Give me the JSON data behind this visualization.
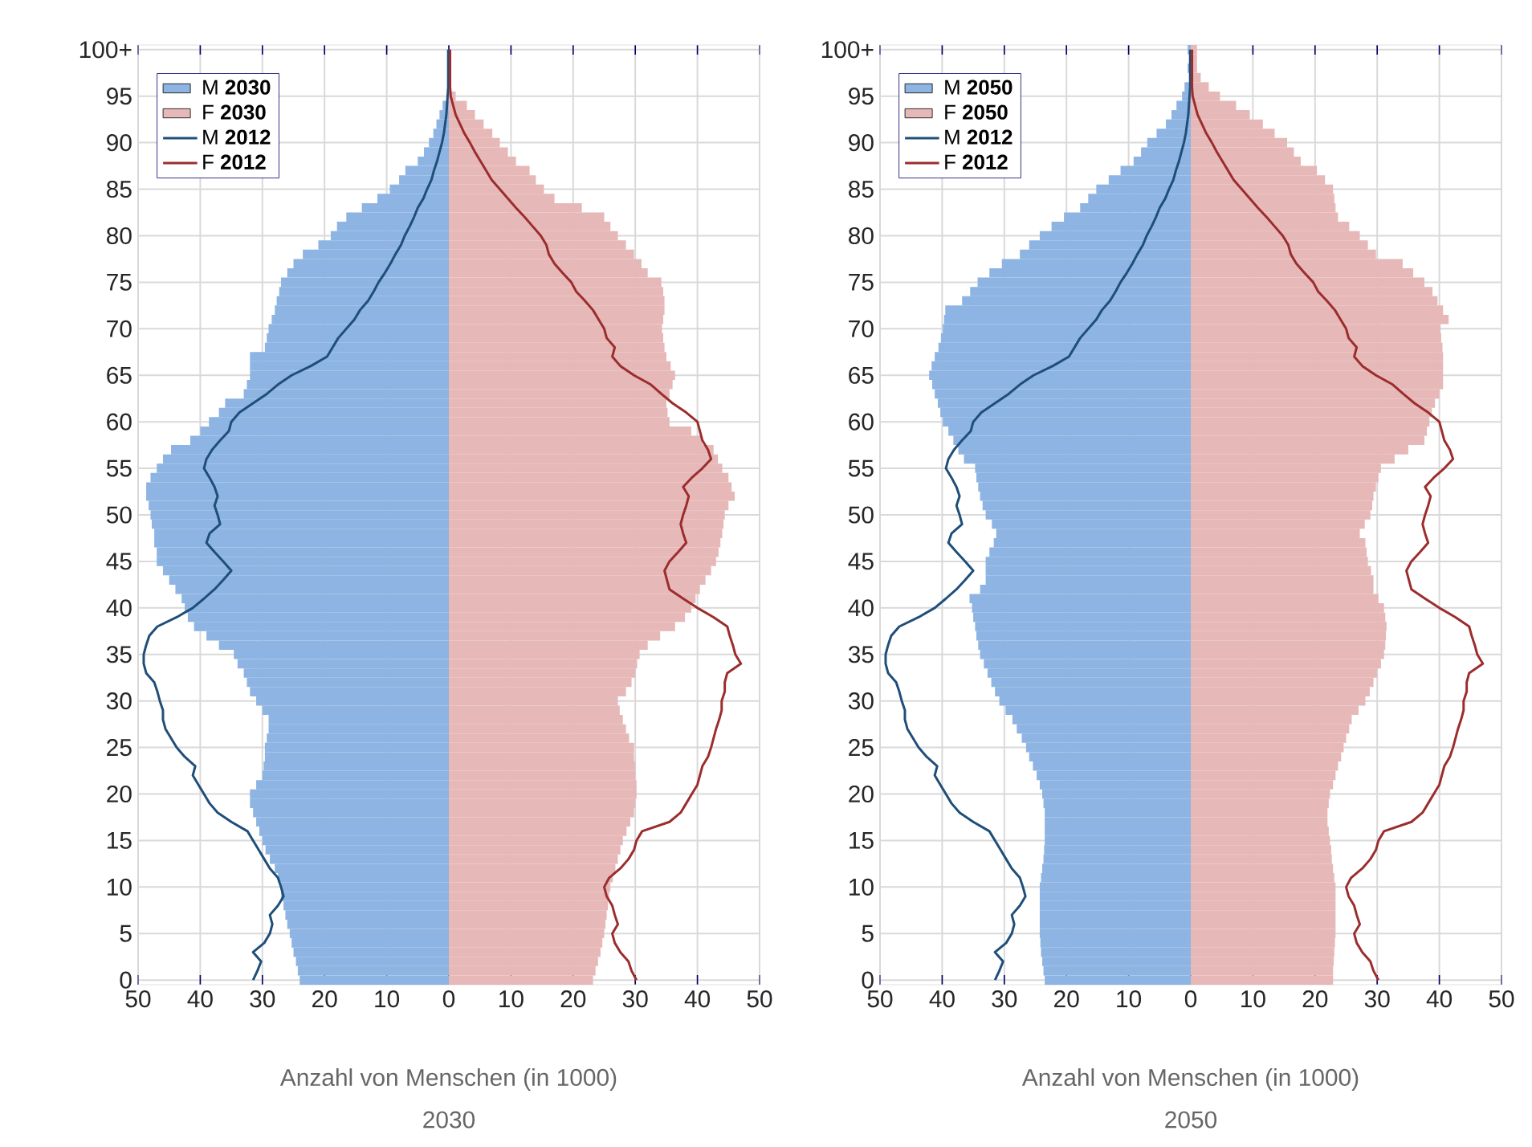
{
  "chart_data": [
    {
      "type": "bar",
      "orientation": "horizontal",
      "stacked": true,
      "title": "2030",
      "xlabel": "Anzahl von Menschen (in 1000)",
      "legend": "top left",
      "grid": true,
      "categories": [
        "100+",
        null,
        null,
        null,
        null,
        "95",
        null,
        null,
        null,
        null,
        "90",
        null,
        null,
        null,
        null,
        "85",
        null,
        null,
        null,
        null,
        "80",
        null,
        null,
        null,
        null,
        "75",
        null,
        null,
        null,
        null,
        "70",
        null,
        null,
        null,
        null,
        "65",
        null,
        null,
        null,
        null,
        "60",
        null,
        null,
        null,
        null,
        "55",
        null,
        null,
        null,
        null,
        "50",
        null,
        null,
        null,
        null,
        "45",
        null,
        null,
        null,
        null,
        "40",
        null,
        null,
        null,
        null,
        "35",
        null,
        null,
        null,
        null,
        "30",
        null,
        null,
        null,
        null,
        "25",
        null,
        null,
        null,
        null,
        "20",
        null,
        null,
        null,
        null,
        "15",
        null,
        null,
        null,
        null,
        "10",
        null,
        null,
        null,
        null,
        "5",
        null,
        null,
        null,
        null,
        "0"
      ],
      "xlim": [
        -50,
        50
      ],
      "xticks": [
        {
          "value": -50,
          "label": "50"
        },
        {
          "value": -40,
          "label": "40"
        },
        {
          "value": -30,
          "label": "30"
        },
        {
          "value": -20,
          "label": "20"
        },
        {
          "value": -10,
          "label": "10"
        },
        0,
        10,
        20,
        30,
        40,
        50
      ],
      "series": [
        {
          "name": "M **2030**",
          "color": "#8db4e2",
          "values": [
            null,
            null,
            null,
            null,
            null,
            null,
            -1,
            -1.5,
            -2,
            -2.5,
            -3.2,
            -4,
            -5,
            -7,
            -8,
            -9.5,
            -11.5,
            -14,
            -16.5,
            -18,
            -19,
            -21,
            -23.5,
            -25,
            -26,
            -27,
            -27.3,
            -27.7,
            -28,
            -28.5,
            -29,
            -29.3,
            -29.6,
            -32,
            -32,
            -32,
            -32.5,
            -33,
            -36,
            -37,
            -38.6,
            -40,
            -41.6,
            -44.7,
            -46,
            -47,
            -48,
            -48.7,
            -48.7,
            -48.3,
            -48,
            -47.8,
            -47.4,
            -47.4,
            -47,
            -47,
            -46,
            -45,
            -44,
            -43,
            -42.5,
            -42,
            -41,
            -39,
            -37,
            -34.6,
            -34,
            -33,
            -32.5,
            -32,
            -31,
            -30,
            -29,
            -29,
            -29.3,
            -29.6,
            -29.6,
            -29.8,
            -30,
            -31,
            -32,
            -32,
            -31.5,
            -31,
            -30.5,
            -30,
            -29.5,
            -28.8,
            -28,
            -27.5,
            -27,
            -27,
            -26.6,
            -26.3,
            -26,
            -25.6,
            -25.3,
            -25,
            -24.6,
            -24.3,
            -24
          ]
        },
        {
          "name": "F **2030**",
          "color": "#e6b8b7",
          "values": [
            null,
            null,
            null,
            null,
            null,
            1.1,
            2.9,
            4.2,
            5.6,
            7,
            8.2,
            9.5,
            10.8,
            13,
            14,
            15.3,
            17,
            21.4,
            25,
            26,
            27.2,
            28.5,
            29.8,
            31,
            32,
            34.2,
            34.5,
            34.7,
            34.7,
            34.5,
            34.3,
            34.5,
            34.7,
            35,
            35.7,
            36.4,
            36,
            35.5,
            35,
            35.2,
            35.5,
            39,
            40.8,
            42.6,
            43.3,
            44,
            45,
            45.5,
            46,
            45,
            44.4,
            44.2,
            44,
            43.7,
            43.4,
            43,
            42.2,
            41.3,
            40.4,
            39.7,
            39,
            38,
            36.4,
            34,
            32,
            30.7,
            30.3,
            30,
            29.4,
            28.5,
            27.2,
            27.5,
            28,
            28.5,
            29,
            29.8,
            29.8,
            30,
            30,
            30.2,
            30.2,
            30,
            29.8,
            29.2,
            28.6,
            28,
            27.6,
            27.2,
            26.8,
            26.4,
            26,
            25.8,
            25.6,
            25.4,
            25.2,
            25,
            24.7,
            24.4,
            24,
            23.6,
            23.2
          ]
        },
        {
          "name": "M **2012**",
          "type": "line",
          "color": "#1f4e79",
          "values": [
            -0.1,
            -0.1,
            -0.1,
            -0.1,
            -0.1,
            -0.2,
            -0.3,
            -0.4,
            -0.6,
            -0.8,
            -1.1,
            -1.5,
            -1.9,
            -2.4,
            -2.8,
            -3.5,
            -4.1,
            -5,
            -5.6,
            -6.3,
            -7.1,
            -7.7,
            -8.6,
            -9.4,
            -10.3,
            -11.3,
            -12.1,
            -13,
            -14.3,
            -15.2,
            -16.5,
            -17.8,
            -18.7,
            -19.6,
            -22.2,
            -25.3,
            -27.5,
            -29.3,
            -31.5,
            -33.7,
            -35,
            -35.4,
            -36.8,
            -38.1,
            -39,
            -39.4,
            -38.5,
            -37.7,
            -37.2,
            -37.7,
            -37.2,
            -36.8,
            -38.5,
            -39,
            -37.7,
            -36.3,
            -35,
            -36.3,
            -37.7,
            -39.4,
            -41.2,
            -43.8,
            -46.9,
            -48.2,
            -48.7,
            -49.1,
            -49.1,
            -48.7,
            -47.4,
            -46.9,
            -46.5,
            -46,
            -46,
            -45.6,
            -44.7,
            -43.8,
            -42.5,
            -40.8,
            -41.2,
            -40.3,
            -39.4,
            -38.5,
            -37.2,
            -35,
            -32.4,
            -31.5,
            -30.6,
            -29.7,
            -28.8,
            -27.5,
            -27,
            -26.6,
            -27.5,
            -28.8,
            -28.4,
            -28.8,
            -29.7,
            -31.5,
            -30.2,
            -30.8,
            -31.5
          ]
        },
        {
          "name": "F **2012**",
          "type": "line",
          "color": "#9b2d2d",
          "values": [
            0.2,
            0.2,
            0.2,
            0.2,
            0.2,
            0.3,
            0.7,
            1.1,
            1.8,
            2.5,
            3.4,
            4.2,
            5.1,
            6,
            6.9,
            8.2,
            9.5,
            10.8,
            12.2,
            13.5,
            14.8,
            15.7,
            16.1,
            17,
            18.3,
            19.7,
            20.5,
            21.9,
            23.2,
            24.1,
            25,
            25.4,
            26.7,
            26.3,
            27.6,
            29.8,
            32.5,
            34.2,
            36,
            38.2,
            40,
            40.4,
            40.8,
            41.7,
            42.2,
            40.8,
            39.1,
            37.7,
            38.6,
            38.2,
            37.7,
            37.3,
            37.7,
            38.2,
            36.9,
            35.5,
            34.7,
            35.1,
            35.5,
            37.7,
            40,
            42.6,
            44.8,
            45.2,
            45.7,
            46.1,
            47,
            44.8,
            44.4,
            44.4,
            43.9,
            43.9,
            43.5,
            43,
            42.6,
            42.2,
            41.7,
            40.8,
            40.4,
            40,
            39.1,
            38.2,
            37.3,
            35.5,
            31.1,
            30.2,
            29.8,
            28.9,
            27.6,
            25.8,
            25,
            25.4,
            26.3,
            26.7,
            27.2,
            26.3,
            26.7,
            27.6,
            28.9,
            29.4,
            30.2
          ]
        }
      ]
    },
    {
      "type": "bar",
      "orientation": "horizontal",
      "stacked": true,
      "title": "2050",
      "xlabel": "Anzahl von Menschen (in 1000)",
      "legend": "top left",
      "grid": true,
      "categories": [
        "100+",
        null,
        null,
        null,
        null,
        "95",
        null,
        null,
        null,
        null,
        "90",
        null,
        null,
        null,
        null,
        "85",
        null,
        null,
        null,
        null,
        "80",
        null,
        null,
        null,
        null,
        "75",
        null,
        null,
        null,
        null,
        "70",
        null,
        null,
        null,
        null,
        "65",
        null,
        null,
        null,
        null,
        "60",
        null,
        null,
        null,
        null,
        "55",
        null,
        null,
        null,
        null,
        "50",
        null,
        null,
        null,
        null,
        "45",
        null,
        null,
        null,
        null,
        "40",
        null,
        null,
        null,
        null,
        "35",
        null,
        null,
        null,
        null,
        "30",
        null,
        null,
        null,
        null,
        "25",
        null,
        null,
        null,
        null,
        "20",
        null,
        null,
        null,
        null,
        "15",
        null,
        null,
        null,
        null,
        "10",
        null,
        null,
        null,
        null,
        "5",
        null,
        null,
        null,
        null,
        "0"
      ],
      "xlim": [
        -50,
        50
      ],
      "xticks": [
        {
          "value": -50,
          "label": "50"
        },
        {
          "value": -40,
          "label": "40"
        },
        {
          "value": -30,
          "label": "30"
        },
        {
          "value": -20,
          "label": "20"
        },
        {
          "value": -10,
          "label": "10"
        },
        0,
        10,
        20,
        30,
        40,
        50
      ],
      "series": [
        {
          "name": "M **2050**",
          "color": "#8db4e2",
          "values": [
            -0.5,
            null,
            -0.5,
            null,
            -1,
            -1.4,
            -2.3,
            -3.1,
            -4,
            -5.5,
            -7,
            -8,
            -9.2,
            -11.3,
            -13.2,
            -15.2,
            -16.5,
            -17.8,
            -20.4,
            -22.4,
            -24.3,
            -26,
            -27.5,
            -30.4,
            -32.4,
            -34.3,
            -35.5,
            -36.8,
            -39.5,
            -39.7,
            -39.9,
            -40.2,
            -40.6,
            -41.2,
            -41.7,
            -42.1,
            -41.6,
            -41.2,
            -40.7,
            -40.3,
            -39.9,
            -39,
            -38.2,
            -37.4,
            -36.5,
            -34.7,
            -34.5,
            -34.2,
            -33.9,
            -33.5,
            -33,
            -32,
            -31.3,
            -31.7,
            -32.4,
            -33,
            -33,
            -33,
            -33.9,
            -35.6,
            -35.2,
            -35,
            -34.7,
            -34.5,
            -34.2,
            -33.9,
            -33.3,
            -32.7,
            -32.1,
            -31.5,
            -30.8,
            -29.8,
            -28.7,
            -28,
            -27.2,
            -26.5,
            -26,
            -25.4,
            -24.8,
            -24.3,
            -23.9,
            -23.7,
            -23.5,
            -23.5,
            -23.5,
            -23.5,
            -23.6,
            -23.7,
            -23.9,
            -24.1,
            -24.3,
            -24.3,
            -24.3,
            -24.3,
            -24.3,
            -24.3,
            -24.2,
            -24.1,
            -23.9,
            -23.7,
            -23.5
          ]
        },
        {
          "name": "F **2050**",
          "color": "#e6b8b7",
          "values": [
            1,
            1,
            1,
            1.6,
            2.9,
            4.7,
            7.3,
            9.5,
            11.6,
            13.5,
            15.5,
            16.6,
            17.7,
            20.3,
            21.6,
            22.9,
            23.1,
            23.3,
            23.7,
            25.5,
            27.2,
            28.5,
            29.8,
            34.1,
            35.8,
            37.6,
            38.9,
            39.7,
            40.6,
            41.5,
            40.2,
            40.3,
            40.5,
            40.6,
            40.6,
            40.6,
            40.6,
            40,
            39.3,
            38.8,
            38.4,
            38,
            37.6,
            35,
            32.8,
            30.6,
            30.2,
            29.8,
            29.4,
            29.2,
            28.9,
            28,
            27.2,
            28.1,
            28.3,
            28.5,
            29,
            29.4,
            29.4,
            30.2,
            31.1,
            31.3,
            31.5,
            31.4,
            31.3,
            31.1,
            30.6,
            30,
            29.4,
            28.8,
            28.1,
            27,
            25.9,
            25.5,
            25,
            24.6,
            24.2,
            23.7,
            23.3,
            22.9,
            22.4,
            22.2,
            22,
            22,
            22.2,
            22.4,
            22.6,
            22.7,
            22.9,
            23.1,
            23.3,
            23.3,
            23.3,
            23.3,
            23.3,
            23.3,
            23.2,
            23.1,
            23,
            22.9,
            22.9
          ]
        },
        {
          "name": "M **2012**",
          "type": "line",
          "color": "#1f4e79",
          "values": [
            -0.1,
            -0.1,
            -0.1,
            -0.1,
            -0.1,
            -0.2,
            -0.3,
            -0.4,
            -0.6,
            -0.8,
            -1.1,
            -1.5,
            -1.9,
            -2.4,
            -2.8,
            -3.5,
            -4.1,
            -5,
            -5.6,
            -6.3,
            -7.1,
            -7.7,
            -8.6,
            -9.4,
            -10.3,
            -11.3,
            -12.1,
            -13,
            -14.3,
            -15.2,
            -16.5,
            -17.8,
            -18.7,
            -19.6,
            -22.2,
            -25.3,
            -27.5,
            -29.3,
            -31.5,
            -33.7,
            -35,
            -35.4,
            -36.8,
            -38.1,
            -39,
            -39.4,
            -38.5,
            -37.7,
            -37.2,
            -37.7,
            -37.2,
            -36.8,
            -38.5,
            -39,
            -37.7,
            -36.3,
            -35,
            -36.3,
            -37.7,
            -39.4,
            -41.2,
            -43.8,
            -46.9,
            -48.2,
            -48.7,
            -49.1,
            -49.1,
            -48.7,
            -47.4,
            -46.9,
            -46.5,
            -46,
            -46,
            -45.6,
            -44.7,
            -43.8,
            -42.5,
            -40.8,
            -41.2,
            -40.3,
            -39.4,
            -38.5,
            -37.2,
            -35,
            -32.4,
            -31.5,
            -30.6,
            -29.7,
            -28.8,
            -27.5,
            -27,
            -26.6,
            -27.5,
            -28.8,
            -28.4,
            -28.8,
            -29.7,
            -31.5,
            -30.2,
            -30.8,
            -31.5
          ]
        },
        {
          "name": "F **2012**",
          "type": "line",
          "color": "#9b2d2d",
          "values": [
            0.2,
            0.2,
            0.2,
            0.2,
            0.2,
            0.3,
            0.7,
            1.1,
            1.8,
            2.5,
            3.4,
            4.2,
            5.1,
            6,
            6.9,
            8.2,
            9.5,
            10.8,
            12.2,
            13.5,
            14.8,
            15.7,
            16.1,
            17,
            18.3,
            19.7,
            20.5,
            21.9,
            23.2,
            24.1,
            25,
            25.4,
            26.7,
            26.3,
            27.6,
            29.8,
            32.5,
            34.2,
            36,
            38.2,
            40,
            40.4,
            40.8,
            41.7,
            42.2,
            40.8,
            39.1,
            37.7,
            38.6,
            38.2,
            37.7,
            37.3,
            37.7,
            38.2,
            36.9,
            35.5,
            34.7,
            35.1,
            35.5,
            37.7,
            40,
            42.6,
            44.8,
            45.2,
            45.7,
            46.1,
            47,
            44.8,
            44.4,
            44.4,
            43.9,
            43.9,
            43.5,
            43,
            42.6,
            42.2,
            41.7,
            40.8,
            40.4,
            40,
            39.1,
            38.2,
            37.3,
            35.5,
            31.1,
            30.2,
            29.8,
            28.9,
            27.6,
            25.8,
            25,
            25.4,
            26.3,
            26.7,
            27.2,
            26.3,
            26.7,
            27.6,
            28.9,
            29.4,
            30.2
          ]
        }
      ]
    }
  ]
}
